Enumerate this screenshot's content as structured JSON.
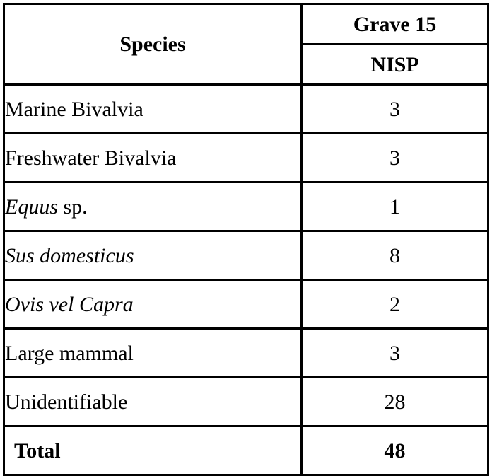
{
  "colors": {
    "border": "#000000",
    "background": "#ffffff",
    "text": "#000000"
  },
  "table": {
    "header": {
      "species_label": "Species",
      "group_label": "Grave 15",
      "measure_label": "NISP"
    },
    "rows": [
      {
        "species": "Marine Bivalvia",
        "style": "regular",
        "nisp": "3"
      },
      {
        "species": "Freshwater Bivalvia",
        "style": "regular",
        "nisp": "3"
      },
      {
        "species": "Equus",
        "suffix": " sp.",
        "style": "italic",
        "nisp": "1"
      },
      {
        "species": "Sus domesticus",
        "style": "italic",
        "nisp": "8"
      },
      {
        "species": "Ovis vel Capra",
        "style": "italic",
        "nisp": "2"
      },
      {
        "species": "Large mammal",
        "style": "regular",
        "nisp": "3"
      },
      {
        "species": "Unidentifiable",
        "style": "regular",
        "nisp": "28"
      }
    ],
    "total": {
      "label": "Total",
      "nisp": "48"
    }
  },
  "chart_data": {
    "type": "table",
    "column_group": "Grave 15",
    "columns": [
      "Species",
      "NISP"
    ],
    "rows": [
      [
        "Marine Bivalvia",
        3
      ],
      [
        "Freshwater Bivalvia",
        3
      ],
      [
        "Equus sp.",
        1
      ],
      [
        "Sus domesticus",
        8
      ],
      [
        "Ovis vel Capra",
        2
      ],
      [
        "Large mammal",
        3
      ],
      [
        "Unidentifiable",
        28
      ]
    ],
    "total_row": [
      "Total",
      48
    ]
  }
}
